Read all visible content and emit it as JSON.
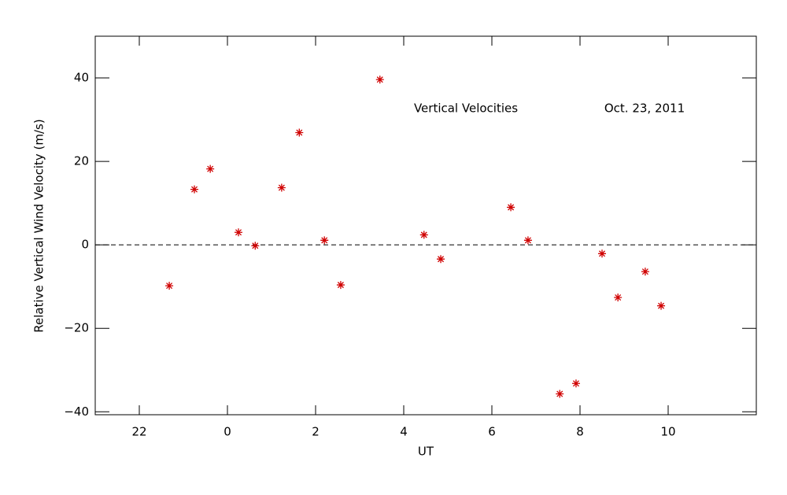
{
  "chart_data": {
    "type": "scatter",
    "xlabel": "UT",
    "ylabel": "Relative Vertical Wind Velocity (m/s)",
    "annotations": [
      "Vertical Velocities",
      "Oct. 23, 2011"
    ],
    "x": [
      -1.32,
      -0.75,
      -0.39,
      0.25,
      0.63,
      1.23,
      1.63,
      2.2,
      2.57,
      3.46,
      4.46,
      4.84,
      6.43,
      6.82,
      7.54,
      7.91,
      8.5,
      8.86,
      9.48,
      9.84
    ],
    "series": [
      {
        "color": "#d00000",
        "values": [
          -9.8,
          13.3,
          18.2,
          3.0,
          -0.2,
          13.7,
          26.9,
          1.1,
          -9.6,
          39.6,
          2.4,
          -3.4,
          9.0,
          1.1,
          -35.7,
          -33.2,
          -2.1,
          -12.6,
          -6.4,
          -14.6
        ]
      }
    ],
    "xlim": [
      -3,
      12
    ],
    "xticks": [
      {
        "value": -2,
        "label": "22"
      },
      0,
      2,
      4,
      6,
      8,
      10
    ],
    "ylim": [
      -40.7,
      50
    ],
    "yticks": [
      {
        "value": -40,
        "label": "−40"
      },
      {
        "value": -20,
        "label": "−20"
      },
      0,
      20,
      40
    ],
    "zero_line": true
  }
}
